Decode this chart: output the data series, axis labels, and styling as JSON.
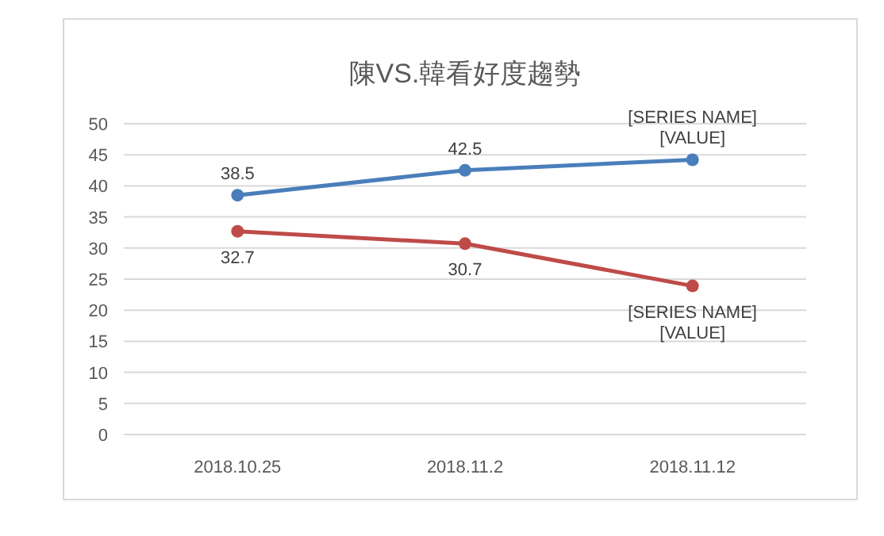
{
  "chart_data": {
    "type": "line",
    "title": "陳VS.韓看好度趨勢",
    "categories": [
      "2018.10.25",
      "2018.11.2",
      "2018.11.12"
    ],
    "series": [
      {
        "color": "#4a7ebb",
        "values": [
          38.5,
          42.5,
          44.2
        ],
        "value_labels": [
          "38.5",
          "42.5",
          "[SERIES NAME]\n[VALUE]"
        ]
      },
      {
        "color": "#be4b48",
        "values": [
          32.7,
          30.7,
          23.9
        ],
        "value_labels": [
          "32.7",
          "30.7",
          "[SERIES NAME]\n[VALUE]"
        ]
      }
    ],
    "ylim": [
      0,
      50
    ],
    "yticks": [
      0,
      5,
      10,
      15,
      20,
      25,
      30,
      35,
      40,
      45,
      50
    ],
    "grid": "y",
    "marker": "circle",
    "line_style": "solid"
  }
}
